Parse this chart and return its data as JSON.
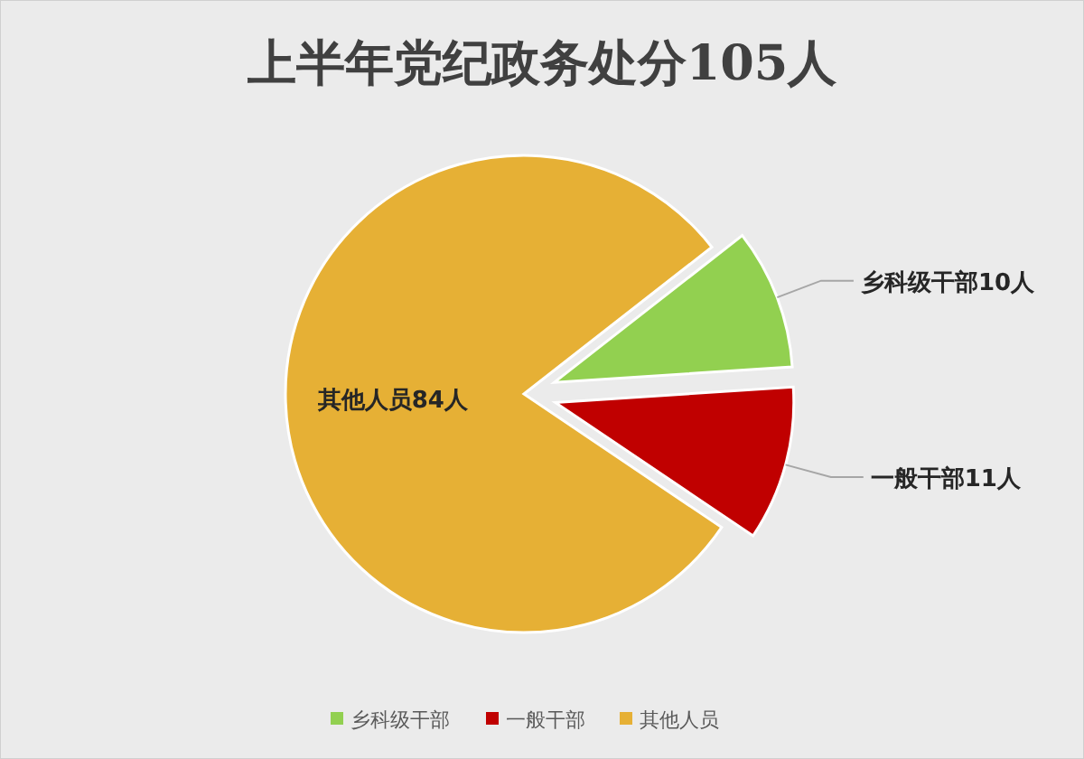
{
  "chart_data": {
    "type": "pie",
    "title": "上半年党纪政务处分105人",
    "categories": [
      "乡科级干部",
      "一般干部",
      "其他人员"
    ],
    "values": [
      10,
      11,
      84
    ],
    "colors": [
      "#92d050",
      "#c00000",
      "#e6b035"
    ],
    "value_labels": [
      "乡科级干部10人",
      "一般干部11人",
      "其他人员84人"
    ],
    "legend": "bottom"
  }
}
